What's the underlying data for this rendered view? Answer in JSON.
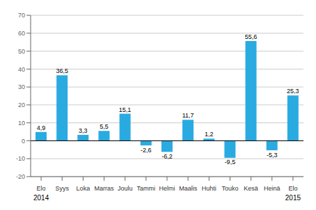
{
  "chart_data": {
    "type": "bar",
    "categories": [
      "Elo",
      "Syys",
      "Loka",
      "Marras",
      "Joulu",
      "Tammi",
      "Helmi",
      "Maalis",
      "Huhti",
      "Touko",
      "Kesä",
      "Heinä",
      "Elo"
    ],
    "values": [
      4.9,
      36.5,
      3.3,
      5.5,
      15.1,
      -2.6,
      -6.2,
      11.7,
      1.2,
      -9.5,
      55.6,
      -5.3,
      25.3
    ],
    "value_labels": [
      "4,9",
      "36,5",
      "3,3",
      "5,5",
      "15,1",
      "-2,6",
      "-6,2",
      "11,7",
      "1,2",
      "-9,5",
      "55,6",
      "-5,3",
      "25,3"
    ],
    "color": "#29abe2",
    "ylim": [
      -20,
      70
    ],
    "yticks": [
      -20,
      -10,
      0,
      10,
      20,
      30,
      40,
      50,
      60,
      70
    ],
    "grid": true,
    "data_labels": true,
    "annotations": [
      {
        "text": "2014",
        "index": 0
      },
      {
        "text": "2015",
        "index": 12
      }
    ]
  }
}
